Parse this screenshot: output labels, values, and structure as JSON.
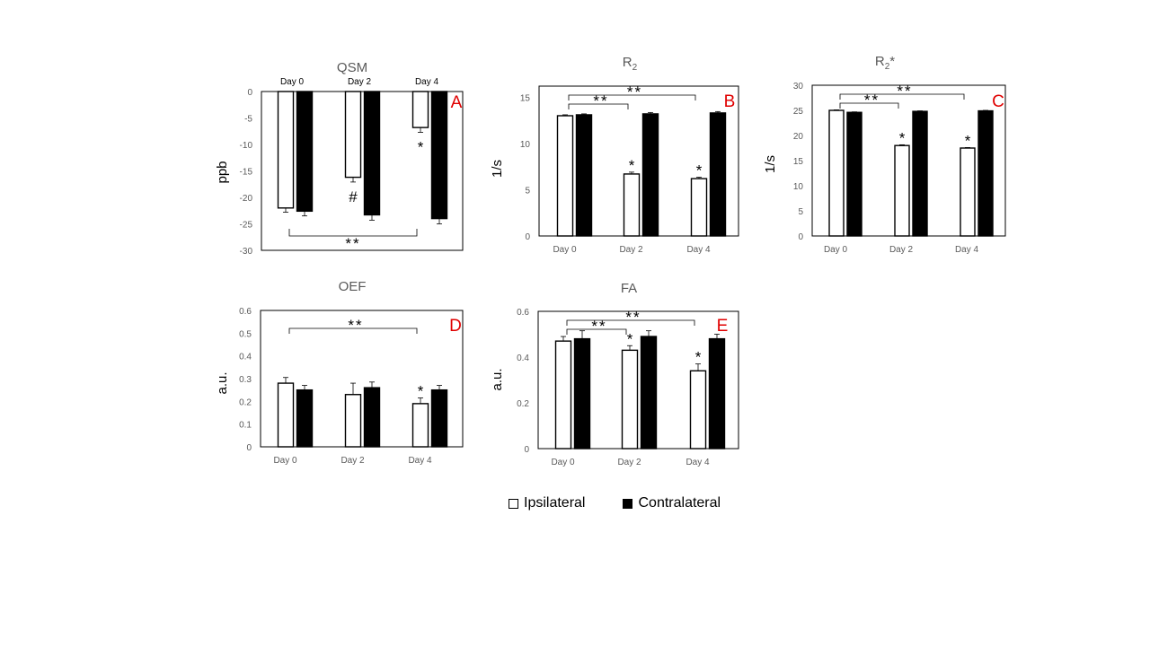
{
  "chart_data": [
    {
      "type": "bar",
      "panel": "A",
      "title": "QSM",
      "ylabel": "ppb",
      "categories": [
        "Day 0",
        "Day 2",
        "Day 4"
      ],
      "category_labels_position": "top",
      "ylim": [
        -30,
        0
      ],
      "ticks": [
        0,
        -5,
        -10,
        -15,
        -20,
        -25,
        -30
      ],
      "tick_labels": [
        "0",
        "-5",
        "-10",
        "-15",
        "-20",
        "-25",
        "-30"
      ],
      "series": [
        {
          "name": "Ipsilateral",
          "values": [
            -22,
            -16.2,
            -6.8
          ],
          "errors": [
            0.8,
            0.9,
            0.9
          ]
        },
        {
          "name": "Contralateral",
          "values": [
            -22.6,
            -23.3,
            -24
          ],
          "errors": [
            0.9,
            1.0,
            1.0
          ]
        }
      ],
      "point_marks": [
        {
          "category": 1,
          "text": "#"
        },
        {
          "category": 2,
          "text": "*"
        }
      ],
      "brackets": [
        {
          "from": 0,
          "to": 2,
          "text": "**",
          "side": "bottom"
        }
      ]
    },
    {
      "type": "bar",
      "panel": "B",
      "title": "R",
      "title_sub": "2",
      "ylabel": "1/s",
      "categories": [
        "Day 0",
        "Day 2",
        "Day 4"
      ],
      "ylim": [
        0,
        16.2
      ],
      "ticks": [
        0,
        5,
        10,
        15
      ],
      "tick_labels": [
        "0",
        "5",
        "10",
        "15"
      ],
      "series": [
        {
          "name": "Ipsilateral",
          "values": [
            13,
            6.7,
            6.2
          ],
          "errors": [
            0.1,
            0.2,
            0.15
          ]
        },
        {
          "name": "Contralateral",
          "values": [
            13.1,
            13.2,
            13.3
          ],
          "errors": [
            0.1,
            0.15,
            0.15
          ]
        }
      ],
      "point_marks": [
        {
          "category": 1,
          "text": "*"
        },
        {
          "category": 2,
          "text": "*"
        }
      ],
      "brackets": [
        {
          "from": 0,
          "to": 1,
          "text": "**",
          "side": "top",
          "level": 0
        },
        {
          "from": 0,
          "to": 2,
          "text": "**",
          "side": "top",
          "level": 1
        }
      ]
    },
    {
      "type": "bar",
      "panel": "C",
      "title": "R",
      "title_sub": "2",
      "title_suffix": "*",
      "ylabel": "1/s",
      "categories": [
        "Day 0",
        "Day 2",
        "Day 4"
      ],
      "ylim": [
        0,
        30
      ],
      "ticks": [
        0,
        5,
        10,
        15,
        20,
        25,
        30
      ],
      "tick_labels": [
        "0",
        "5",
        "10",
        "15",
        "20",
        "25",
        "30"
      ],
      "series": [
        {
          "name": "Ipsilateral",
          "values": [
            25,
            18,
            17.5
          ],
          "errors": [
            0.1,
            0.15,
            0.1
          ]
        },
        {
          "name": "Contralateral",
          "values": [
            24.6,
            24.8,
            24.9
          ],
          "errors": [
            0.1,
            0.1,
            0.1
          ]
        }
      ],
      "point_marks": [
        {
          "category": 1,
          "text": "*"
        },
        {
          "category": 2,
          "text": "*"
        }
      ],
      "brackets": [
        {
          "from": 0,
          "to": 1,
          "text": "**",
          "side": "top",
          "level": 0
        },
        {
          "from": 0,
          "to": 2,
          "text": "**",
          "side": "top",
          "level": 1
        }
      ]
    },
    {
      "type": "bar",
      "panel": "D",
      "title": "OEF",
      "ylabel": "a.u.",
      "categories": [
        "Day 0",
        "Day 2",
        "Day 4"
      ],
      "ylim": [
        0,
        0.6
      ],
      "ticks": [
        0,
        0.1,
        0.2,
        0.3,
        0.4,
        0.5,
        0.6
      ],
      "tick_labels": [
        "0",
        "0.1",
        "0.2",
        "0.3",
        "0.4",
        "0.5",
        "0.6"
      ],
      "series": [
        {
          "name": "Ipsilateral",
          "values": [
            0.28,
            0.23,
            0.19
          ],
          "errors": [
            0.025,
            0.05,
            0.025
          ]
        },
        {
          "name": "Contralateral",
          "values": [
            0.25,
            0.26,
            0.25
          ],
          "errors": [
            0.02,
            0.025,
            0.02
          ]
        }
      ],
      "point_marks": [
        {
          "category": 2,
          "text": "*"
        }
      ],
      "brackets": [
        {
          "from": 0,
          "to": 2,
          "text": "**",
          "side": "top",
          "level": 0
        }
      ]
    },
    {
      "type": "bar",
      "panel": "E",
      "title": "FA",
      "ylabel": "a.u.",
      "categories": [
        "Day 0",
        "Day 2",
        "Day 4"
      ],
      "ylim": [
        0,
        0.6
      ],
      "ticks": [
        0,
        0.2,
        0.4,
        0.6
      ],
      "tick_labels": [
        "0",
        "0.2",
        "0.4",
        "0.6"
      ],
      "series": [
        {
          "name": "Ipsilateral",
          "values": [
            0.47,
            0.43,
            0.34
          ],
          "errors": [
            0.02,
            0.02,
            0.03
          ]
        },
        {
          "name": "Contralateral",
          "values": [
            0.48,
            0.49,
            0.48
          ],
          "errors": [
            0.035,
            0.025,
            0.02
          ]
        }
      ],
      "point_marks": [
        {
          "category": 1,
          "text": "*"
        },
        {
          "category": 2,
          "text": "*"
        }
      ],
      "brackets": [
        {
          "from": 0,
          "to": 1,
          "text": "**",
          "side": "top",
          "level": 0
        },
        {
          "from": 0,
          "to": 2,
          "text": "**",
          "side": "top",
          "level": 1
        }
      ]
    }
  ],
  "legend": {
    "items": [
      {
        "label": "Ipsilateral",
        "color": "#ffffff"
      },
      {
        "label": "Contralateral",
        "color": "#000000"
      }
    ]
  },
  "colors": {
    "panel_letter": "#e00000",
    "title": "#595959",
    "axis": "#595959",
    "bar_edge": "#000000"
  }
}
